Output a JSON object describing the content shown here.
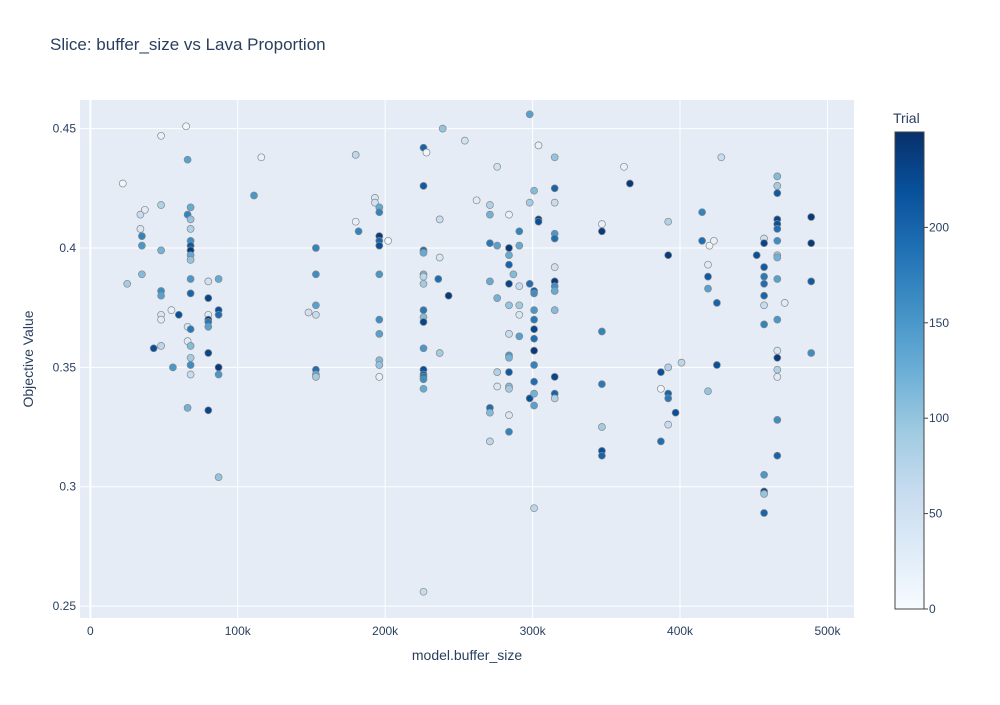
{
  "chart_data": {
    "type": "scatter",
    "title": "Slice: buffer_size vs Lava Proportion",
    "xlabel": "model.buffer_size",
    "ylabel": "Objective Value",
    "xlim": [
      -7000,
      518000
    ],
    "ylim": [
      0.245,
      0.462
    ],
    "x_ticks": [
      {
        "value": 0,
        "label": "0"
      },
      {
        "value": 100000,
        "label": "100k"
      },
      {
        "value": 200000,
        "label": "200k"
      },
      {
        "value": 300000,
        "label": "300k"
      },
      {
        "value": 400000,
        "label": "400k"
      },
      {
        "value": 500000,
        "label": "500k"
      }
    ],
    "y_ticks": [
      {
        "value": 0.25,
        "label": "0.25"
      },
      {
        "value": 0.3,
        "label": "0.3"
      },
      {
        "value": 0.35,
        "label": "0.35"
      },
      {
        "value": 0.4,
        "label": "0.4"
      },
      {
        "value": 0.45,
        "label": "0.45"
      }
    ],
    "grid": true,
    "colorbar": {
      "title": "Trial",
      "range": [
        0,
        250
      ],
      "ticks": [
        {
          "value": 0,
          "label": "0"
        },
        {
          "value": 50,
          "label": "50"
        },
        {
          "value": 100,
          "label": "100"
        },
        {
          "value": 150,
          "label": "150"
        },
        {
          "value": 200,
          "label": "200"
        }
      ],
      "colorscale": [
        "#f7fbff",
        "#deebf7",
        "#c6dbef",
        "#9ecae1",
        "#6baed6",
        "#4292c6",
        "#2171b5",
        "#08519c",
        "#08306b"
      ]
    },
    "points": [
      {
        "x": 22000,
        "y": 0.427,
        "t": 10
      },
      {
        "x": 25000,
        "y": 0.385,
        "t": 90
      },
      {
        "x": 34000,
        "y": 0.414,
        "t": 60
      },
      {
        "x": 34000,
        "y": 0.408,
        "t": 40
      },
      {
        "x": 35000,
        "y": 0.405,
        "t": 170
      },
      {
        "x": 35000,
        "y": 0.401,
        "t": 150
      },
      {
        "x": 35000,
        "y": 0.389,
        "t": 110
      },
      {
        "x": 37000,
        "y": 0.416,
        "t": 30
      },
      {
        "x": 43000,
        "y": 0.358,
        "t": 220
      },
      {
        "x": 48000,
        "y": 0.447,
        "t": 20
      },
      {
        "x": 48000,
        "y": 0.418,
        "t": 80
      },
      {
        "x": 48000,
        "y": 0.399,
        "t": 120
      },
      {
        "x": 48000,
        "y": 0.382,
        "t": 160
      },
      {
        "x": 48000,
        "y": 0.38,
        "t": 140
      },
      {
        "x": 48000,
        "y": 0.372,
        "t": 40
      },
      {
        "x": 48000,
        "y": 0.37,
        "t": 30
      },
      {
        "x": 48000,
        "y": 0.359,
        "t": 70
      },
      {
        "x": 55000,
        "y": 0.374,
        "t": 20
      },
      {
        "x": 56000,
        "y": 0.35,
        "t": 150
      },
      {
        "x": 60000,
        "y": 0.372,
        "t": 220
      },
      {
        "x": 65000,
        "y": 0.451,
        "t": 10
      },
      {
        "x": 66000,
        "y": 0.437,
        "t": 140
      },
      {
        "x": 66000,
        "y": 0.414,
        "t": 170
      },
      {
        "x": 66000,
        "y": 0.367,
        "t": 40
      },
      {
        "x": 66000,
        "y": 0.361,
        "t": 30
      },
      {
        "x": 66000,
        "y": 0.333,
        "t": 120
      },
      {
        "x": 68000,
        "y": 0.417,
        "t": 130
      },
      {
        "x": 68000,
        "y": 0.412,
        "t": 100
      },
      {
        "x": 68000,
        "y": 0.408,
        "t": 80
      },
      {
        "x": 68000,
        "y": 0.403,
        "t": 160
      },
      {
        "x": 68000,
        "y": 0.401,
        "t": 210
      },
      {
        "x": 68000,
        "y": 0.399,
        "t": 240
      },
      {
        "x": 68000,
        "y": 0.397,
        "t": 130
      },
      {
        "x": 68000,
        "y": 0.395,
        "t": 100
      },
      {
        "x": 68000,
        "y": 0.387,
        "t": 150
      },
      {
        "x": 68000,
        "y": 0.381,
        "t": 200
      },
      {
        "x": 68000,
        "y": 0.366,
        "t": 180
      },
      {
        "x": 68000,
        "y": 0.359,
        "t": 110
      },
      {
        "x": 68000,
        "y": 0.354,
        "t": 90
      },
      {
        "x": 68000,
        "y": 0.351,
        "t": 160
      },
      {
        "x": 68000,
        "y": 0.347,
        "t": 60
      },
      {
        "x": 80000,
        "y": 0.379,
        "t": 230
      },
      {
        "x": 80000,
        "y": 0.372,
        "t": 30
      },
      {
        "x": 80000,
        "y": 0.37,
        "t": 240
      },
      {
        "x": 80000,
        "y": 0.369,
        "t": 180
      },
      {
        "x": 80000,
        "y": 0.367,
        "t": 140
      },
      {
        "x": 80000,
        "y": 0.386,
        "t": 50
      },
      {
        "x": 80000,
        "y": 0.356,
        "t": 230
      },
      {
        "x": 80000,
        "y": 0.332,
        "t": 230
      },
      {
        "x": 87000,
        "y": 0.387,
        "t": 130
      },
      {
        "x": 87000,
        "y": 0.374,
        "t": 220
      },
      {
        "x": 87000,
        "y": 0.372,
        "t": 190
      },
      {
        "x": 87000,
        "y": 0.35,
        "t": 240
      },
      {
        "x": 87000,
        "y": 0.347,
        "t": 150
      },
      {
        "x": 87000,
        "y": 0.304,
        "t": 100
      },
      {
        "x": 111000,
        "y": 0.422,
        "t": 150
      },
      {
        "x": 116000,
        "y": 0.438,
        "t": 20
      },
      {
        "x": 148000,
        "y": 0.373,
        "t": 50
      },
      {
        "x": 153000,
        "y": 0.4,
        "t": 170
      },
      {
        "x": 153000,
        "y": 0.389,
        "t": 160
      },
      {
        "x": 153000,
        "y": 0.376,
        "t": 140
      },
      {
        "x": 153000,
        "y": 0.372,
        "t": 60
      },
      {
        "x": 153000,
        "y": 0.349,
        "t": 190
      },
      {
        "x": 153000,
        "y": 0.347,
        "t": 130
      },
      {
        "x": 153000,
        "y": 0.346,
        "t": 90
      },
      {
        "x": 180000,
        "y": 0.411,
        "t": 20
      },
      {
        "x": 180000,
        "y": 0.439,
        "t": 70
      },
      {
        "x": 182000,
        "y": 0.407,
        "t": 170
      },
      {
        "x": 193000,
        "y": 0.421,
        "t": 40
      },
      {
        "x": 193000,
        "y": 0.419,
        "t": 50
      },
      {
        "x": 196000,
        "y": 0.417,
        "t": 130
      },
      {
        "x": 196000,
        "y": 0.415,
        "t": 170
      },
      {
        "x": 196000,
        "y": 0.405,
        "t": 240
      },
      {
        "x": 196000,
        "y": 0.403,
        "t": 200
      },
      {
        "x": 196000,
        "y": 0.401,
        "t": 220
      },
      {
        "x": 196000,
        "y": 0.389,
        "t": 150
      },
      {
        "x": 196000,
        "y": 0.37,
        "t": 160
      },
      {
        "x": 196000,
        "y": 0.364,
        "t": 140
      },
      {
        "x": 196000,
        "y": 0.353,
        "t": 110
      },
      {
        "x": 196000,
        "y": 0.351,
        "t": 100
      },
      {
        "x": 196000,
        "y": 0.346,
        "t": 20
      },
      {
        "x": 202000,
        "y": 0.403,
        "t": 10
      },
      {
        "x": 226000,
        "y": 0.442,
        "t": 200
      },
      {
        "x": 226000,
        "y": 0.426,
        "t": 210
      },
      {
        "x": 226000,
        "y": 0.399,
        "t": 190
      },
      {
        "x": 226000,
        "y": 0.398,
        "t": 130
      },
      {
        "x": 226000,
        "y": 0.389,
        "t": 120
      },
      {
        "x": 226000,
        "y": 0.388,
        "t": 70
      },
      {
        "x": 226000,
        "y": 0.385,
        "t": 90
      },
      {
        "x": 226000,
        "y": 0.374,
        "t": 180
      },
      {
        "x": 226000,
        "y": 0.371,
        "t": 110
      },
      {
        "x": 226000,
        "y": 0.369,
        "t": 230
      },
      {
        "x": 226000,
        "y": 0.358,
        "t": 150
      },
      {
        "x": 226000,
        "y": 0.349,
        "t": 220
      },
      {
        "x": 226000,
        "y": 0.347,
        "t": 200
      },
      {
        "x": 226000,
        "y": 0.346,
        "t": 190
      },
      {
        "x": 226000,
        "y": 0.345,
        "t": 160
      },
      {
        "x": 226000,
        "y": 0.341,
        "t": 130
      },
      {
        "x": 226000,
        "y": 0.256,
        "t": 60
      },
      {
        "x": 228000,
        "y": 0.44,
        "t": 10
      },
      {
        "x": 236000,
        "y": 0.387,
        "t": 190
      },
      {
        "x": 237000,
        "y": 0.412,
        "t": 60
      },
      {
        "x": 237000,
        "y": 0.396,
        "t": 40
      },
      {
        "x": 237000,
        "y": 0.356,
        "t": 90
      },
      {
        "x": 239000,
        "y": 0.45,
        "t": 100
      },
      {
        "x": 243000,
        "y": 0.38,
        "t": 240
      },
      {
        "x": 254000,
        "y": 0.445,
        "t": 50
      },
      {
        "x": 262000,
        "y": 0.42,
        "t": 30
      },
      {
        "x": 271000,
        "y": 0.418,
        "t": 80
      },
      {
        "x": 271000,
        "y": 0.414,
        "t": 120
      },
      {
        "x": 271000,
        "y": 0.402,
        "t": 180
      },
      {
        "x": 271000,
        "y": 0.386,
        "t": 130
      },
      {
        "x": 271000,
        "y": 0.333,
        "t": 190
      },
      {
        "x": 271000,
        "y": 0.331,
        "t": 110
      },
      {
        "x": 271000,
        "y": 0.319,
        "t": 70
      },
      {
        "x": 276000,
        "y": 0.434,
        "t": 50
      },
      {
        "x": 276000,
        "y": 0.401,
        "t": 140
      },
      {
        "x": 276000,
        "y": 0.379,
        "t": 120
      },
      {
        "x": 276000,
        "y": 0.348,
        "t": 80
      },
      {
        "x": 276000,
        "y": 0.342,
        "t": 40
      },
      {
        "x": 284000,
        "y": 0.414,
        "t": 20
      },
      {
        "x": 284000,
        "y": 0.4,
        "t": 240
      },
      {
        "x": 284000,
        "y": 0.397,
        "t": 130
      },
      {
        "x": 284000,
        "y": 0.393,
        "t": 200
      },
      {
        "x": 284000,
        "y": 0.385,
        "t": 230
      },
      {
        "x": 284000,
        "y": 0.376,
        "t": 100
      },
      {
        "x": 284000,
        "y": 0.364,
        "t": 60
      },
      {
        "x": 284000,
        "y": 0.355,
        "t": 150
      },
      {
        "x": 284000,
        "y": 0.354,
        "t": 120
      },
      {
        "x": 284000,
        "y": 0.348,
        "t": 210
      },
      {
        "x": 284000,
        "y": 0.342,
        "t": 110
      },
      {
        "x": 284000,
        "y": 0.341,
        "t": 90
      },
      {
        "x": 284000,
        "y": 0.33,
        "t": 40
      },
      {
        "x": 284000,
        "y": 0.323,
        "t": 170
      },
      {
        "x": 287000,
        "y": 0.389,
        "t": 110
      },
      {
        "x": 291000,
        "y": 0.407,
        "t": 170
      },
      {
        "x": 291000,
        "y": 0.401,
        "t": 130
      },
      {
        "x": 291000,
        "y": 0.384,
        "t": 60
      },
      {
        "x": 291000,
        "y": 0.376,
        "t": 90
      },
      {
        "x": 291000,
        "y": 0.372,
        "t": 40
      },
      {
        "x": 291000,
        "y": 0.363,
        "t": 140
      },
      {
        "x": 298000,
        "y": 0.456,
        "t": 140
      },
      {
        "x": 298000,
        "y": 0.419,
        "t": 90
      },
      {
        "x": 298000,
        "y": 0.385,
        "t": 190
      },
      {
        "x": 298000,
        "y": 0.337,
        "t": 220
      },
      {
        "x": 301000,
        "y": 0.424,
        "t": 110
      },
      {
        "x": 301000,
        "y": 0.382,
        "t": 210
      },
      {
        "x": 301000,
        "y": 0.381,
        "t": 160
      },
      {
        "x": 301000,
        "y": 0.374,
        "t": 150
      },
      {
        "x": 301000,
        "y": 0.37,
        "t": 180
      },
      {
        "x": 301000,
        "y": 0.366,
        "t": 230
      },
      {
        "x": 301000,
        "y": 0.362,
        "t": 190
      },
      {
        "x": 301000,
        "y": 0.357,
        "t": 240
      },
      {
        "x": 301000,
        "y": 0.351,
        "t": 170
      },
      {
        "x": 301000,
        "y": 0.344,
        "t": 190
      },
      {
        "x": 301000,
        "y": 0.339,
        "t": 120
      },
      {
        "x": 301000,
        "y": 0.334,
        "t": 140
      },
      {
        "x": 301000,
        "y": 0.291,
        "t": 70
      },
      {
        "x": 304000,
        "y": 0.443,
        "t": 20
      },
      {
        "x": 304000,
        "y": 0.412,
        "t": 240
      },
      {
        "x": 304000,
        "y": 0.411,
        "t": 220
      },
      {
        "x": 315000,
        "y": 0.438,
        "t": 100
      },
      {
        "x": 315000,
        "y": 0.425,
        "t": 200
      },
      {
        "x": 315000,
        "y": 0.419,
        "t": 60
      },
      {
        "x": 315000,
        "y": 0.406,
        "t": 150
      },
      {
        "x": 315000,
        "y": 0.404,
        "t": 190
      },
      {
        "x": 315000,
        "y": 0.392,
        "t": 50
      },
      {
        "x": 315000,
        "y": 0.386,
        "t": 240
      },
      {
        "x": 315000,
        "y": 0.384,
        "t": 160
      },
      {
        "x": 315000,
        "y": 0.382,
        "t": 130
      },
      {
        "x": 315000,
        "y": 0.374,
        "t": 110
      },
      {
        "x": 315000,
        "y": 0.346,
        "t": 230
      },
      {
        "x": 315000,
        "y": 0.339,
        "t": 200
      },
      {
        "x": 315000,
        "y": 0.337,
        "t": 80
      },
      {
        "x": 347000,
        "y": 0.41,
        "t": 20
      },
      {
        "x": 347000,
        "y": 0.407,
        "t": 240
      },
      {
        "x": 347000,
        "y": 0.365,
        "t": 170
      },
      {
        "x": 347000,
        "y": 0.343,
        "t": 180
      },
      {
        "x": 347000,
        "y": 0.325,
        "t": 90
      },
      {
        "x": 347000,
        "y": 0.315,
        "t": 220
      },
      {
        "x": 347000,
        "y": 0.313,
        "t": 200
      },
      {
        "x": 362000,
        "y": 0.434,
        "t": 20
      },
      {
        "x": 366000,
        "y": 0.427,
        "t": 240
      },
      {
        "x": 387000,
        "y": 0.348,
        "t": 220
      },
      {
        "x": 387000,
        "y": 0.341,
        "t": 10
      },
      {
        "x": 387000,
        "y": 0.319,
        "t": 190
      },
      {
        "x": 392000,
        "y": 0.411,
        "t": 80
      },
      {
        "x": 392000,
        "y": 0.397,
        "t": 240
      },
      {
        "x": 392000,
        "y": 0.35,
        "t": 80
      },
      {
        "x": 392000,
        "y": 0.339,
        "t": 200
      },
      {
        "x": 392000,
        "y": 0.337,
        "t": 180
      },
      {
        "x": 392000,
        "y": 0.326,
        "t": 60
      },
      {
        "x": 397000,
        "y": 0.331,
        "t": 220
      },
      {
        "x": 401000,
        "y": 0.352,
        "t": 70
      },
      {
        "x": 415000,
        "y": 0.415,
        "t": 170
      },
      {
        "x": 415000,
        "y": 0.403,
        "t": 190
      },
      {
        "x": 419000,
        "y": 0.393,
        "t": 30
      },
      {
        "x": 419000,
        "y": 0.388,
        "t": 210
      },
      {
        "x": 419000,
        "y": 0.383,
        "t": 140
      },
      {
        "x": 419000,
        "y": 0.34,
        "t": 100
      },
      {
        "x": 420000,
        "y": 0.401,
        "t": 10
      },
      {
        "x": 423000,
        "y": 0.403,
        "t": 20
      },
      {
        "x": 425000,
        "y": 0.377,
        "t": 200
      },
      {
        "x": 425000,
        "y": 0.351,
        "t": 220
      },
      {
        "x": 428000,
        "y": 0.438,
        "t": 60
      },
      {
        "x": 452000,
        "y": 0.397,
        "t": 220
      },
      {
        "x": 457000,
        "y": 0.404,
        "t": 50
      },
      {
        "x": 457000,
        "y": 0.402,
        "t": 230
      },
      {
        "x": 457000,
        "y": 0.392,
        "t": 210
      },
      {
        "x": 457000,
        "y": 0.388,
        "t": 180
      },
      {
        "x": 457000,
        "y": 0.385,
        "t": 190
      },
      {
        "x": 457000,
        "y": 0.38,
        "t": 200
      },
      {
        "x": 457000,
        "y": 0.376,
        "t": 60
      },
      {
        "x": 457000,
        "y": 0.368,
        "t": 170
      },
      {
        "x": 457000,
        "y": 0.305,
        "t": 150
      },
      {
        "x": 457000,
        "y": 0.298,
        "t": 230
      },
      {
        "x": 457000,
        "y": 0.297,
        "t": 100
      },
      {
        "x": 457000,
        "y": 0.289,
        "t": 200
      },
      {
        "x": 466000,
        "y": 0.43,
        "t": 110
      },
      {
        "x": 466000,
        "y": 0.426,
        "t": 90
      },
      {
        "x": 466000,
        "y": 0.423,
        "t": 210
      },
      {
        "x": 466000,
        "y": 0.412,
        "t": 230
      },
      {
        "x": 466000,
        "y": 0.41,
        "t": 220
      },
      {
        "x": 466000,
        "y": 0.408,
        "t": 190
      },
      {
        "x": 466000,
        "y": 0.403,
        "t": 160
      },
      {
        "x": 466000,
        "y": 0.397,
        "t": 100
      },
      {
        "x": 466000,
        "y": 0.396,
        "t": 120
      },
      {
        "x": 466000,
        "y": 0.387,
        "t": 140
      },
      {
        "x": 466000,
        "y": 0.37,
        "t": 150
      },
      {
        "x": 466000,
        "y": 0.357,
        "t": 40
      },
      {
        "x": 466000,
        "y": 0.354,
        "t": 240
      },
      {
        "x": 466000,
        "y": 0.349,
        "t": 80
      },
      {
        "x": 466000,
        "y": 0.346,
        "t": 30
      },
      {
        "x": 466000,
        "y": 0.328,
        "t": 160
      },
      {
        "x": 466000,
        "y": 0.313,
        "t": 200
      },
      {
        "x": 471000,
        "y": 0.377,
        "t": 30
      },
      {
        "x": 489000,
        "y": 0.413,
        "t": 240
      },
      {
        "x": 489000,
        "y": 0.402,
        "t": 240
      },
      {
        "x": 489000,
        "y": 0.386,
        "t": 210
      },
      {
        "x": 489000,
        "y": 0.356,
        "t": 160
      }
    ]
  }
}
